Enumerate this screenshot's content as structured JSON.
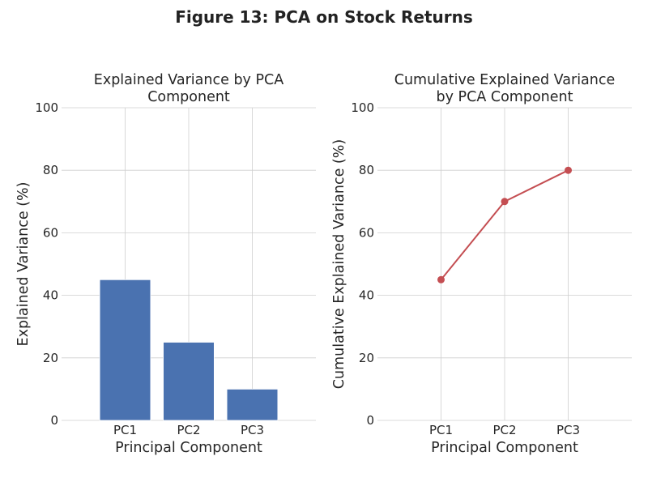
{
  "figure": {
    "title": "Figure 13: PCA on Stock Returns"
  },
  "chart_data": [
    {
      "type": "bar",
      "title_lines": [
        "Explained Variance by PCA",
        "Component"
      ],
      "xlabel": "Principal Component",
      "ylabel": "Explained Variance (%)",
      "categories": [
        "PC1",
        "PC2",
        "PC3"
      ],
      "values": [
        45,
        25,
        10
      ],
      "ylim": [
        0,
        100
      ],
      "yticks": [
        0,
        20,
        40,
        60,
        80,
        100
      ],
      "grid": true,
      "color": "#4a72b0"
    },
    {
      "type": "line",
      "title_lines": [
        "Cumulative Explained Variance",
        "by PCA Component"
      ],
      "xlabel": "Principal Component",
      "ylabel": "Cumulative Explained Variance (%)",
      "categories": [
        "PC1",
        "PC2",
        "PC3"
      ],
      "values": [
        45,
        70,
        80
      ],
      "ylim": [
        0,
        100
      ],
      "yticks": [
        0,
        20,
        40,
        60,
        80,
        100
      ],
      "grid": true,
      "color": "#c44e52",
      "marker": "circle"
    }
  ]
}
